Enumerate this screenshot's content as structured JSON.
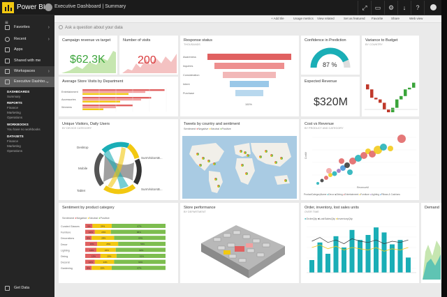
{
  "topbar": {
    "brand": "Power BI",
    "breadcrumb": "Executive Dashboard  |  Summary",
    "icons": [
      "expand-icon",
      "chat-icon",
      "settings-icon",
      "download-icon",
      "help-icon",
      "user-icon"
    ]
  },
  "actionbar": {
    "items": [
      "+ Add tile",
      "Usage metrics",
      "View related",
      "Set as featured",
      "Favorite",
      "Share",
      "Web view"
    ]
  },
  "sidebar": {
    "items": [
      {
        "label": "Favorites",
        "icon": "star-icon"
      },
      {
        "label": "Recent",
        "icon": "clock-icon"
      },
      {
        "label": "Apps",
        "icon": "apps-icon"
      },
      {
        "label": "Shared with me",
        "icon": "share-icon"
      },
      {
        "label": "Workspaces",
        "icon": "workspaces-icon"
      },
      {
        "label": "Executive Dashbo...",
        "icon": "workspace-icon"
      }
    ],
    "sections": {
      "dashboards": "DASHBOARDS",
      "dashboards_items": [
        "Summary"
      ],
      "reports": "REPORTS",
      "reports_items": [
        "Finance",
        "Marketing",
        "Operations"
      ],
      "workbooks": "WORKBOOKS",
      "workbooks_items": [
        "You have no workbooks"
      ],
      "datasets": "DATASETS",
      "datasets_items": [
        "Finance",
        "Marketing",
        "Operations"
      ]
    },
    "footer": "Get Data"
  },
  "qa": {
    "placeholder": "Ask a question about your data"
  },
  "tiles": {
    "campaign": {
      "title": "Campaign revenue vs target",
      "value": "$62.3K"
    },
    "visits": {
      "title": "Number of visits",
      "value": "200"
    },
    "response": {
      "title": "Response status",
      "subtitle": "THOUSANDS",
      "stages": [
        "Awareness",
        "Inquiries",
        "Consideration",
        "Intent",
        "Purchase"
      ],
      "footer": "100%"
    },
    "confidence": {
      "title": "Confidence in Prediction",
      "value": "87 %",
      "gauge": 0.87
    },
    "variance": {
      "title": "Variance to Budget",
      "subtitle": "BY COUNTRY",
      "values": [
        -3,
        -5,
        -1,
        -2,
        -4,
        -2,
        3,
        5,
        2,
        4,
        1,
        3
      ]
    },
    "store_visits": {
      "title": "Average Store Visits by Department",
      "categories": [
        "Entertainment",
        "Accessories",
        "Womens"
      ],
      "series": [
        {
          "name": "",
          "values": [
            98,
            82,
            60
          ]
        },
        {
          "name": "",
          "values": [
            75,
            70,
            40
          ]
        },
        {
          "name": "",
          "values": [
            55,
            45,
            25
          ]
        }
      ]
    },
    "expected": {
      "title": "Expected Revenue",
      "value": "$320M"
    },
    "unique": {
      "title": "Unique Visitors, Daily Users",
      "subtitle": "BY DEVICE CATEGORY",
      "labels": [
        "Desktop",
        "Mobile",
        "Tablet",
        "SumVisitorsB...",
        "SumVisitorsB..."
      ]
    },
    "tweets": {
      "title": "Tweets by country and sentiment",
      "legend": [
        "Sentiment",
        "Negative",
        "Neutral",
        "Positive"
      ]
    },
    "cost": {
      "title": "Cost vs Revenue",
      "subtitle": "BY PRODUCT AND CATEGORY",
      "xlabel": "RevenueM",
      "ylabel": "CostM",
      "legend": [
        "ProductCategoryName",
        "Decor",
        "Dining",
        "Entertainment",
        "Furniture",
        "Lighting",
        "Pillows & Cushions"
      ]
    },
    "sentiment": {
      "title": "Sentiment by product category",
      "legend": [
        "Sentiment",
        "Negative",
        "Neutral",
        "Positive"
      ],
      "categories": [
        "Curated Glasses",
        "Furniture",
        "Decorations",
        "Decor",
        "Lighting",
        "Dining",
        "Decorat",
        "Gardening"
      ],
      "series": [
        {
          "name": "Negative",
          "values": [
            9,
            12,
            8,
            15,
            14,
            19,
            12,
            8
          ]
        },
        {
          "name": "Neutral",
          "values": [
            24,
            20,
            28,
            26,
            24,
            20,
            24,
            25
          ]
        },
        {
          "name": "Positive",
          "values": [
            67,
            68,
            64,
            59,
            62,
            61,
            64,
            67
          ]
        }
      ]
    },
    "store": {
      "title": "Store performance",
      "subtitle": "BY DEPARTMENT"
    },
    "order": {
      "title": "Order, inventory, lost sales units",
      "subtitle": "OVER TIME",
      "legend": [
        "OrderQty",
        "LostSalesQty",
        "InventoryQty"
      ],
      "series": [
        {
          "name": "OrderQty",
          "values": [
            20,
            48,
            30,
            58,
            40,
            68,
            52,
            60,
            72,
            64,
            45,
            52,
            24
          ]
        }
      ]
    },
    "demand": {
      "title": "Demand"
    }
  },
  "colors": {
    "accent": "#f2c811",
    "green": "#7dbd4f",
    "red": "#e06060",
    "yellow": "#f2c811",
    "teal": "#1aaeb6",
    "blue": "#3c8fd8"
  }
}
